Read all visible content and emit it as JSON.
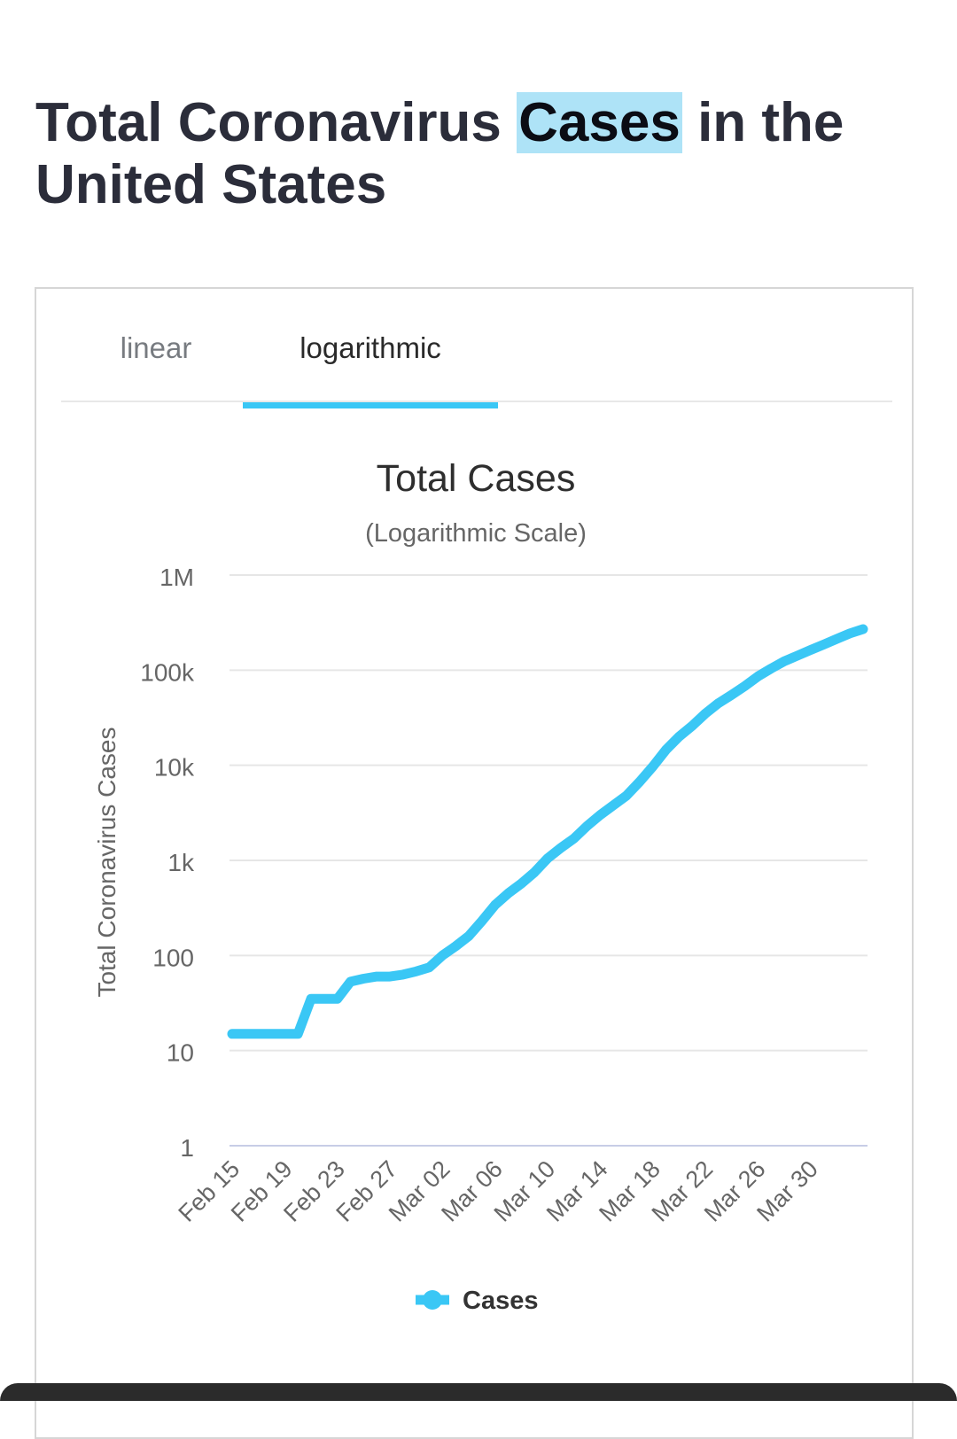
{
  "page": {
    "title_before": "Total Coronavirus ",
    "title_highlight": "Cases",
    "title_after": " in the United States"
  },
  "tabs": [
    {
      "label": "linear",
      "active": false
    },
    {
      "label": "logarithmic",
      "active": true
    }
  ],
  "colors": {
    "accent": "#3ac7f5",
    "highlight": "#aee3f7",
    "text": "#2b2d3a",
    "grid": "#e6e6e6"
  },
  "chart_data": {
    "type": "line",
    "title": "Total Cases",
    "subtitle": "(Logarithmic Scale)",
    "ylabel": "Total Coronavirus Cases",
    "xlabel": "",
    "yscale": "log",
    "ylim": [
      1,
      1000000
    ],
    "yticks": [
      {
        "value": 1,
        "label": "1"
      },
      {
        "value": 10,
        "label": "10"
      },
      {
        "value": 100,
        "label": "100"
      },
      {
        "value": 1000,
        "label": "1k"
      },
      {
        "value": 10000,
        "label": "10k"
      },
      {
        "value": 100000,
        "label": "100k"
      },
      {
        "value": 1000000,
        "label": "1M"
      }
    ],
    "x": [
      "Feb 15",
      "Feb 16",
      "Feb 17",
      "Feb 18",
      "Feb 19",
      "Feb 20",
      "Feb 21",
      "Feb 22",
      "Feb 23",
      "Feb 24",
      "Feb 25",
      "Feb 26",
      "Feb 27",
      "Feb 28",
      "Feb 29",
      "Mar 01",
      "Mar 02",
      "Mar 03",
      "Mar 04",
      "Mar 05",
      "Mar 06",
      "Mar 07",
      "Mar 08",
      "Mar 09",
      "Mar 10",
      "Mar 11",
      "Mar 12",
      "Mar 13",
      "Mar 14",
      "Mar 15",
      "Mar 16",
      "Mar 17",
      "Mar 18",
      "Mar 19",
      "Mar 20",
      "Mar 21",
      "Mar 22",
      "Mar 23",
      "Mar 24",
      "Mar 25",
      "Mar 26",
      "Mar 27",
      "Mar 28",
      "Mar 29",
      "Mar 30",
      "Mar 31",
      "Apr 01",
      "Apr 02",
      "Apr 03"
    ],
    "xticks": [
      "Feb 15",
      "Feb 19",
      "Feb 23",
      "Feb 27",
      "Mar 02",
      "Mar 06",
      "Mar 10",
      "Mar 14",
      "Mar 18",
      "Mar 22",
      "Mar 26",
      "Mar 30"
    ],
    "series": [
      {
        "name": "Cases",
        "values": [
          15,
          15,
          15,
          15,
          15,
          15,
          35,
          35,
          35,
          53,
          57,
          60,
          60,
          63,
          68,
          75,
          100,
          125,
          160,
          230,
          340,
          450,
          570,
          750,
          1050,
          1350,
          1700,
          2300,
          3000,
          3800,
          4800,
          6700,
          9700,
          14500,
          20000,
          26000,
          35000,
          45000,
          55000,
          68000,
          86000,
          104000,
          124000,
          142000,
          163000,
          186000,
          213000,
          244000,
          270000
        ]
      }
    ],
    "legend": {
      "position": "bottom",
      "label": "Cases"
    }
  }
}
